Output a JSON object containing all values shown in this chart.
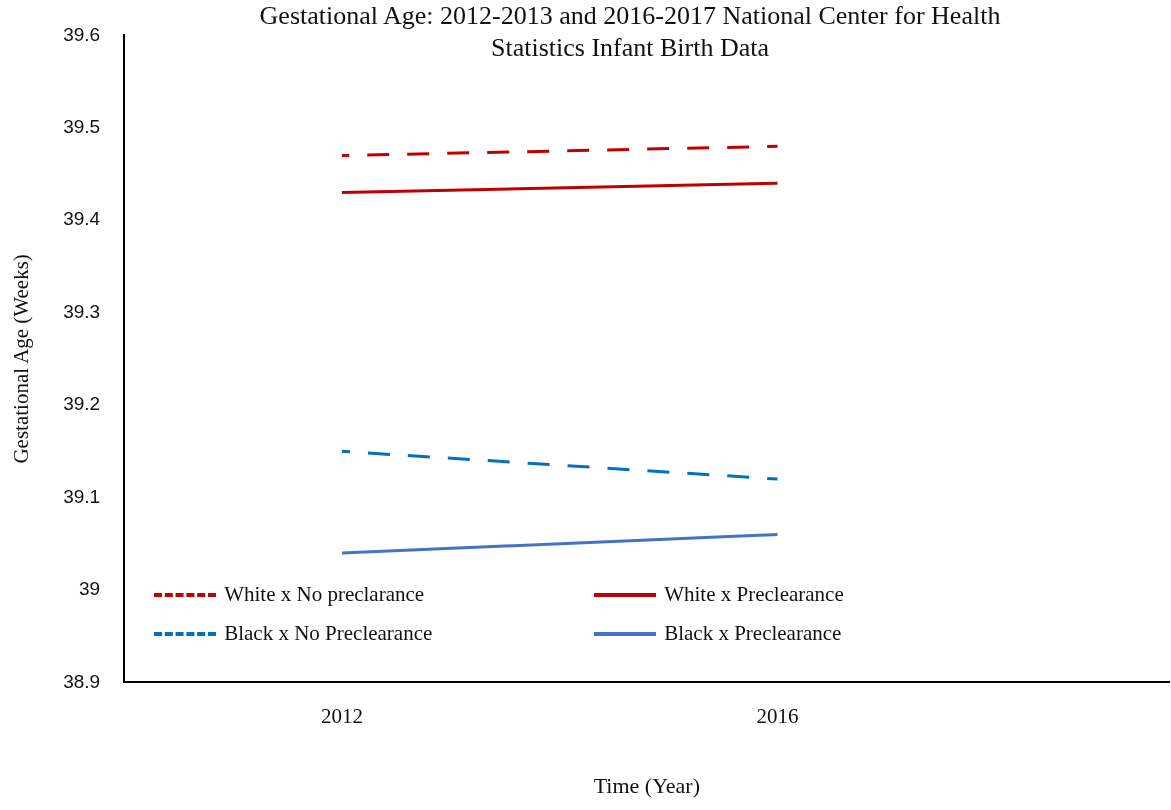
{
  "chart_data": {
    "type": "line",
    "title": "Gestational Age: 2012-2013 and 2016-2017 National Center for Health Statistics Infant Birth Data",
    "xlabel": "Time (Year)",
    "ylabel": "Gestational Age (Weeks)",
    "x": [
      2012,
      2016
    ],
    "xlim": [
      2010,
      2019.6
    ],
    "xticks": [
      2012,
      2016
    ],
    "series": [
      {
        "name": "White x No preclarance",
        "color": "#c00000",
        "line_style": "dashed",
        "values": [
          39.47,
          39.48
        ]
      },
      {
        "name": "White x Preclearance",
        "color": "#c00000",
        "line_style": "solid",
        "values": [
          39.43,
          39.44
        ]
      },
      {
        "name": "Black x No Preclearance",
        "color": "#0070c0",
        "line_style": "dashed",
        "values": [
          39.15,
          39.12
        ]
      },
      {
        "name": "Black x Preclearance",
        "color": "#4472c4",
        "line_style": "solid",
        "values": [
          39.04,
          39.06
        ]
      }
    ],
    "ylim": [
      38.9,
      39.6
    ],
    "yticks": [
      38.9,
      39,
      39.1,
      39.2,
      39.3,
      39.4,
      39.5,
      39.6
    ],
    "grid": false,
    "legend": "bottom left",
    "marker": "none"
  }
}
